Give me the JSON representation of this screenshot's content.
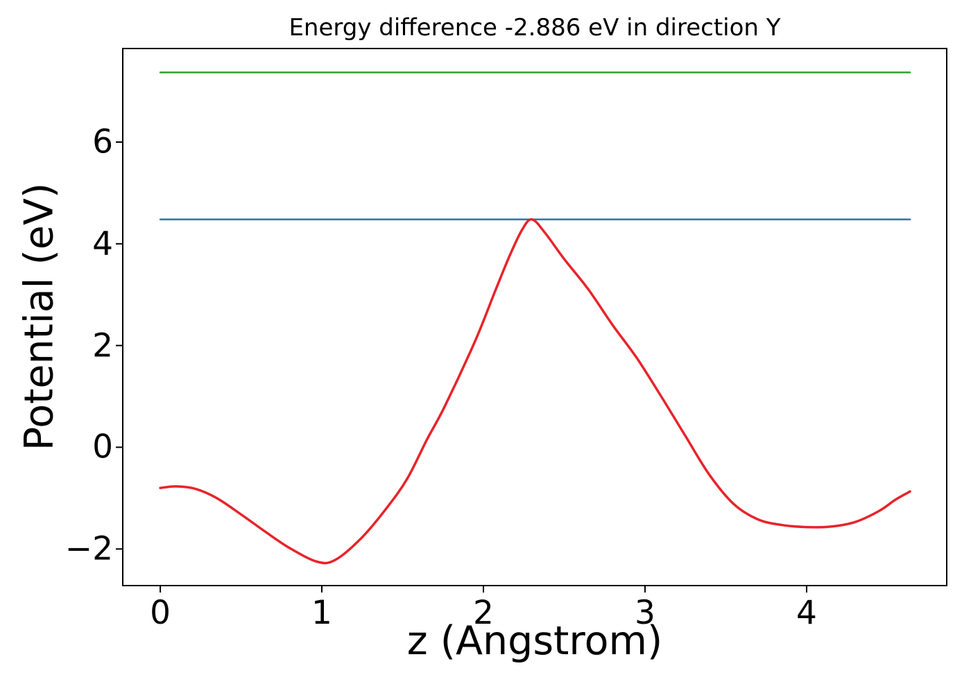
{
  "figure": {
    "background": "#ffffff",
    "text_color": "#000000",
    "spine_color": "#000000"
  },
  "chart_data": {
    "type": "line",
    "title": "Energy difference -2.886 eV in direction Y",
    "xlabel": "z (Angstrom)",
    "ylabel": "Potential (eV)",
    "xlim": [
      -0.232,
      4.867
    ],
    "ylim": [
      -2.72,
      7.84
    ],
    "grid": false,
    "legend": null,
    "xticks": {
      "values": [
        0,
        1,
        2,
        3,
        4
      ],
      "labels": [
        "0",
        "1",
        "2",
        "3",
        "4"
      ]
    },
    "yticks": {
      "values": [
        -2,
        0,
        2,
        4,
        6
      ],
      "labels": [
        "−2",
        "0",
        "2",
        "4",
        "6"
      ]
    },
    "series": [
      {
        "name": "green-level-line",
        "color": "#2ca02c",
        "width": 2.5,
        "smooth": false,
        "x": [
          0.0,
          4.64
        ],
        "y": [
          7.37,
          7.37
        ]
      },
      {
        "name": "blue-level-line",
        "color": "#1f77b4",
        "width": 2.5,
        "smooth": false,
        "x": [
          0.0,
          4.64
        ],
        "y": [
          4.48,
          4.48
        ]
      },
      {
        "name": "potential-curve",
        "color": "#e8232a",
        "width": 3.5,
        "smooth": true,
        "x": [
          0.0,
          0.1,
          0.22,
          0.35,
          0.5,
          0.65,
          0.8,
          0.97,
          1.08,
          1.24,
          1.4,
          1.53,
          1.65,
          1.76,
          1.95,
          2.07,
          2.16,
          2.24,
          2.3,
          2.38,
          2.5,
          2.65,
          2.8,
          2.95,
          3.1,
          3.25,
          3.4,
          3.55,
          3.7,
          3.85,
          4.0,
          4.15,
          4.3,
          4.45,
          4.55,
          4.64
        ],
        "y": [
          -0.8,
          -0.77,
          -0.82,
          -1.0,
          -1.32,
          -1.66,
          -1.98,
          -2.25,
          -2.22,
          -1.8,
          -1.2,
          -0.61,
          0.15,
          0.8,
          2.1,
          3.05,
          3.75,
          4.28,
          4.48,
          4.22,
          3.7,
          3.1,
          2.4,
          1.75,
          1.0,
          0.22,
          -0.55,
          -1.12,
          -1.42,
          -1.53,
          -1.57,
          -1.56,
          -1.47,
          -1.25,
          -1.03,
          -0.87
        ]
      }
    ]
  }
}
